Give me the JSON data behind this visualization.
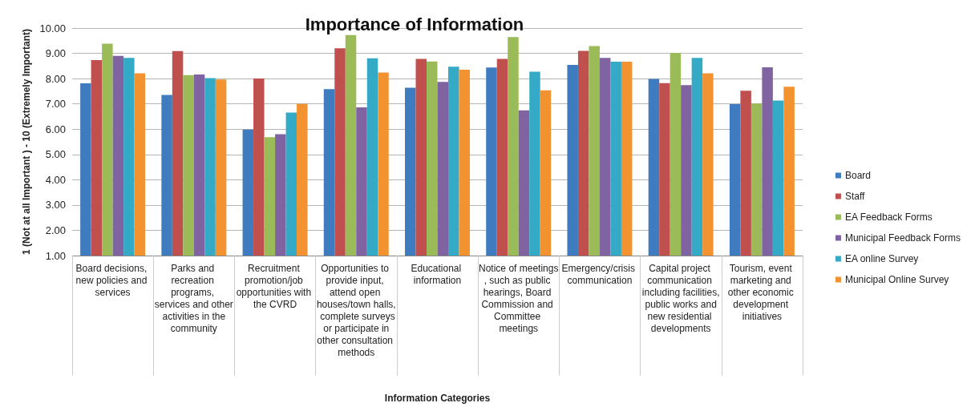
{
  "chart_data": {
    "type": "bar",
    "title": "Importance of Information",
    "xlabel": "Information Categories",
    "ylabel": "1 (Not at all Important ) - 10 (Extremely Important)",
    "categories": [
      "Board decisions, new policies and services",
      "Parks and recreation programs, services and other activities in the community",
      "Recruitment promotion/job opportunities with the CVRD",
      "Opportunities to provide input, attend open houses/town halls, complete surveys or participate in other consultation methods",
      "Educational information",
      "Notice of meetings, such as public hearings, Board Commission and Committee meetings",
      "Emergency/crisis communication",
      "Capital project communication including facilities, public works and new residential developments",
      "Tourism, event marketing and other economic development initiatives"
    ],
    "series": [
      {
        "name": "Board",
        "color": "#3f7cbf",
        "values": [
          7.81,
          7.35,
          5.98,
          7.58,
          7.64,
          8.44,
          8.54,
          7.99,
          6.99
        ]
      },
      {
        "name": "Staff",
        "color": "#c0504d",
        "values": [
          8.73,
          9.09,
          8.0,
          9.2,
          8.78,
          8.78,
          9.1,
          7.82,
          7.52
        ]
      },
      {
        "name": "EA Feedback Forms",
        "color": "#9bbb59",
        "values": [
          9.38,
          8.14,
          5.68,
          9.72,
          8.68,
          9.64,
          9.29,
          9.01,
          7.02
        ]
      },
      {
        "name": "Municipal Feedback Forms",
        "color": "#8064a2",
        "values": [
          8.9,
          8.16,
          5.8,
          6.86,
          7.87,
          6.74,
          8.82,
          7.74,
          8.45
        ]
      },
      {
        "name": "EA online Survey",
        "color": "#35aac6",
        "values": [
          8.82,
          8.02,
          6.66,
          8.8,
          8.47,
          8.27,
          8.67,
          8.82,
          7.13
        ]
      },
      {
        "name": "Municipal Online Survey",
        "color": "#f39230",
        "values": [
          8.21,
          7.96,
          7.0,
          8.24,
          8.35,
          7.54,
          8.67,
          8.21,
          7.68
        ]
      }
    ],
    "ylim": [
      1,
      10
    ],
    "yticks": [
      {
        "value": 1,
        "label": "1.00"
      },
      {
        "value": 2,
        "label": "2.00"
      },
      {
        "value": 3,
        "label": "3.00"
      },
      {
        "value": 4,
        "label": "4.00"
      },
      {
        "value": 5,
        "label": "5.00"
      },
      {
        "value": 6,
        "label": "6.00"
      },
      {
        "value": 7,
        "label": "7.00"
      },
      {
        "value": 8,
        "label": "8.00"
      },
      {
        "value": 9,
        "label": "9.00"
      },
      {
        "value": 10,
        "label": "10.00"
      }
    ],
    "grid": "y",
    "legend": "right"
  }
}
